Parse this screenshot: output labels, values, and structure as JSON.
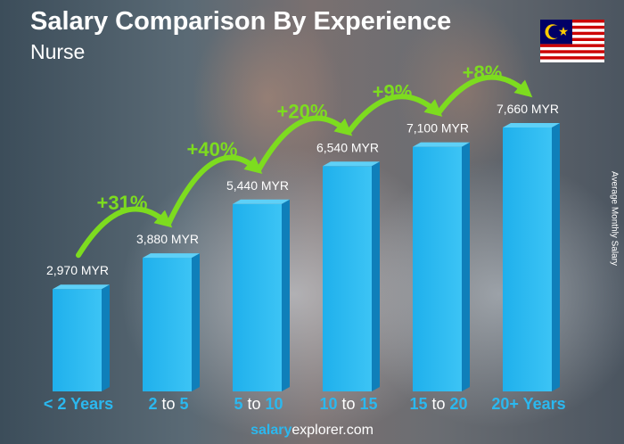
{
  "header": {
    "title": "Salary Comparison By Experience",
    "subtitle": "Nurse"
  },
  "flag_icon": "malaysia-flag-icon",
  "footer": {
    "brand_bold": "salary",
    "brand_rest": "explorer.com"
  },
  "colors": {
    "bar": "#1fb0ec",
    "bar_side": "#0f7fba",
    "bar_top": "#5ed0f7",
    "accent": "#2bb8ef",
    "increase": "#7ddc1f"
  },
  "chart_data": {
    "type": "bar",
    "title": "Salary Comparison By Experience",
    "subtitle": "Nurse",
    "ylabel": "Average Monthly Salary",
    "categories": [
      "< 2 Years",
      "2 to 5",
      "5 to 10",
      "10 to 15",
      "15 to 20",
      "20+ Years"
    ],
    "category_parts": [
      [
        "< 2 Years",
        "",
        ""
      ],
      [
        "2",
        " to ",
        "5"
      ],
      [
        "5",
        " to ",
        "10"
      ],
      [
        "10",
        " to ",
        "15"
      ],
      [
        "15",
        " to ",
        "20"
      ],
      [
        "20+ Years",
        "",
        ""
      ]
    ],
    "values": [
      2970,
      3880,
      5440,
      6540,
      7100,
      7660
    ],
    "value_labels": [
      "2,970 MYR",
      "3,880 MYR",
      "5,440 MYR",
      "6,540 MYR",
      "7,100 MYR",
      "7,660 MYR"
    ],
    "currency": "MYR",
    "increases": [
      "+31%",
      "+40%",
      "+20%",
      "+9%",
      "+8%"
    ],
    "legend": "none",
    "grid": false
  }
}
